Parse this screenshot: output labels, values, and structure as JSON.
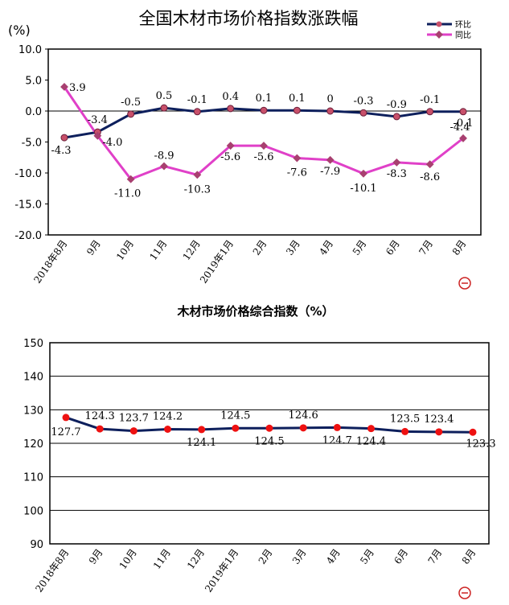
{
  "chart_data": [
    {
      "type": "line",
      "title": "全国木材市场价格指数涨跌幅",
      "unit_label": "(%)",
      "categories": [
        "2018年8月",
        "9月",
        "10月",
        "11月",
        "12月",
        "2019年1月",
        "2月",
        "3月",
        "4月",
        "5月",
        "6月",
        "7月",
        "8月"
      ],
      "ylim": [
        -20.0,
        10.0
      ],
      "yticks": [
        "10.0",
        "5.0",
        "0.0",
        "-5.0",
        "-10.0",
        "-15.0",
        "-20.0"
      ],
      "legend_position": "top-right",
      "series": [
        {
          "name": "环比",
          "color": "#0d1f5c",
          "marker_color": "#c8506a",
          "values": [
            -4.3,
            -3.4,
            -0.5,
            0.5,
            -0.1,
            0.4,
            0.1,
            0.1,
            0,
            -0.3,
            -0.9,
            -0.1,
            -0.1
          ],
          "labels": [
            "-4.3",
            "-3.4",
            "-0.5",
            "0.5",
            "-0.1",
            "0.4",
            "0.1",
            "0.1",
            "0",
            "-0.3",
            "-0.9",
            "-0.1",
            "-0.1"
          ]
        },
        {
          "name": "同比",
          "color": "#e040c8",
          "marker_color": "#a84070",
          "values": [
            3.9,
            -4.0,
            -11.0,
            -8.9,
            -10.3,
            -5.6,
            -5.6,
            -7.6,
            -7.9,
            -10.1,
            -8.3,
            -8.6,
            -4.4
          ],
          "labels": [
            "3.9",
            "-4.0",
            "-11.0",
            "-8.9",
            "-10.3",
            "-5.6",
            "-5.6",
            "-7.6",
            "-7.9",
            "-10.1",
            "-8.3",
            "-8.6",
            "-4.4"
          ]
        }
      ]
    },
    {
      "type": "line",
      "title": "木材市场价格综合指数（%）",
      "categories": [
        "2018年8月",
        "9月",
        "10月",
        "11月",
        "12月",
        "2019年1月",
        "2月",
        "3月",
        "4月",
        "5月",
        "6月",
        "7月",
        "8月"
      ],
      "ylim": [
        90,
        150
      ],
      "yticks": [
        "150",
        "140",
        "130",
        "120",
        "110",
        "100",
        "90"
      ],
      "grid": true,
      "series": [
        {
          "color": "#0d1f5c",
          "marker_color": "#ee1111",
          "values": [
            127.7,
            124.3,
            123.7,
            124.2,
            124.1,
            124.5,
            124.5,
            124.6,
            124.7,
            124.4,
            123.5,
            123.4,
            123.3
          ],
          "labels": [
            "127.7",
            "124.3",
            "123.7",
            "124.2",
            "124.1",
            "124.5",
            "124.5",
            "124.6",
            "124.7",
            "124.4",
            "123.5",
            "123.4",
            "123.3"
          ]
        }
      ]
    }
  ]
}
